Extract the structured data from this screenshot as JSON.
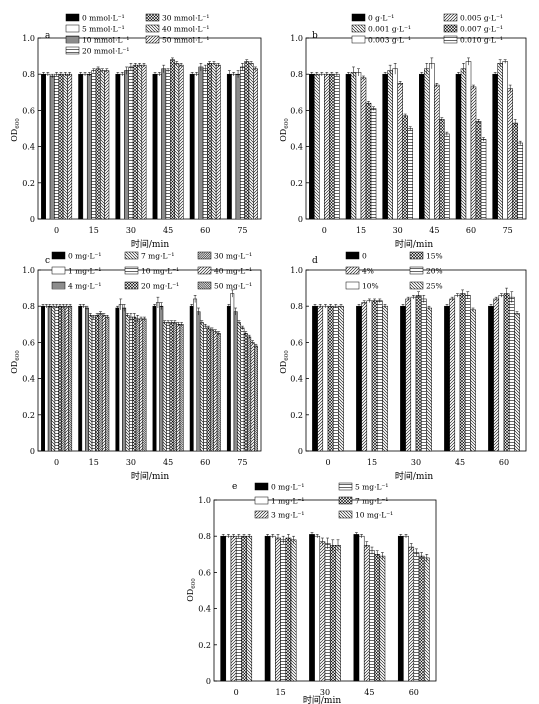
{
  "chart_data": [
    {
      "panel": "a",
      "type": "bar",
      "categories": [
        "0",
        "15",
        "30",
        "45",
        "60",
        "75"
      ],
      "xlabel": "时间/min",
      "ylabel": "OD",
      "ylabel_sub": "600",
      "ylim": [
        0,
        1.0
      ],
      "yticks": [
        "0",
        "0.2",
        "0.4",
        "0.6",
        "0.8",
        "1.0"
      ],
      "legend_position": "top",
      "legend_cols": 2,
      "series": [
        {
          "name": "0 mmol·L⁻¹",
          "pattern": "black",
          "values": [
            0.8,
            0.8,
            0.8,
            0.8,
            0.8,
            0.8
          ],
          "errors": [
            0.01,
            0.01,
            0.01,
            0.01,
            0.01,
            0.02
          ]
        },
        {
          "name": "5 mmol·L⁻¹",
          "pattern": "white",
          "values": [
            0.8,
            0.8,
            0.8,
            0.8,
            0.8,
            0.8
          ],
          "errors": [
            0.01,
            0.01,
            0.01,
            0.01,
            0.01,
            0.01
          ]
        },
        {
          "name": "10 mmol·L⁻¹",
          "pattern": "hhoriz",
          "values": [
            0.79,
            0.8,
            0.82,
            0.83,
            0.84,
            0.8
          ],
          "errors": [
            0.01,
            0.01,
            0.02,
            0.02,
            0.02,
            0.02
          ]
        },
        {
          "name": "20 mmol·L⁻¹",
          "pattern": "horiz",
          "values": [
            0.8,
            0.82,
            0.84,
            0.82,
            0.83,
            0.84
          ],
          "errors": [
            0.01,
            0.01,
            0.02,
            0.01,
            0.02,
            0.02
          ]
        },
        {
          "name": "30 mmol·L⁻¹",
          "pattern": "cross",
          "values": [
            0.8,
            0.83,
            0.85,
            0.88,
            0.86,
            0.87
          ],
          "errors": [
            0.01,
            0.01,
            0.01,
            0.01,
            0.01,
            0.01
          ]
        },
        {
          "name": "40 mmol·L⁻¹",
          "pattern": "back",
          "values": [
            0.8,
            0.82,
            0.85,
            0.86,
            0.86,
            0.86
          ],
          "errors": [
            0.01,
            0.01,
            0.01,
            0.01,
            0.01,
            0.01
          ]
        },
        {
          "name": "50 mmol·L⁻¹",
          "pattern": "fwd",
          "values": [
            0.8,
            0.82,
            0.85,
            0.85,
            0.85,
            0.83
          ],
          "errors": [
            0.01,
            0.01,
            0.01,
            0.01,
            0.01,
            0.01
          ]
        }
      ]
    },
    {
      "panel": "b",
      "type": "bar",
      "categories": [
        "0",
        "15",
        "30",
        "45",
        "60",
        "75"
      ],
      "xlabel": "时间/min",
      "ylabel": "OD",
      "ylabel_sub": "600",
      "ylim": [
        0,
        1.0
      ],
      "yticks": [
        "0",
        "0.2",
        "0.4",
        "0.6",
        "0.8",
        "1.0"
      ],
      "legend_position": "top",
      "legend_cols": 2,
      "series": [
        {
          "name": "0 g·L⁻¹",
          "pattern": "black",
          "values": [
            0.8,
            0.8,
            0.8,
            0.8,
            0.8,
            0.8
          ],
          "errors": [
            0.01,
            0.01,
            0.01,
            0.01,
            0.01,
            0.01
          ]
        },
        {
          "name": "0.001 g·L⁻¹",
          "pattern": "back",
          "values": [
            0.8,
            0.81,
            0.82,
            0.83,
            0.83,
            0.86
          ],
          "errors": [
            0.01,
            0.03,
            0.03,
            0.03,
            0.03,
            0.02
          ]
        },
        {
          "name": "0.003 g·L⁻¹",
          "pattern": "white",
          "values": [
            0.8,
            0.81,
            0.83,
            0.86,
            0.87,
            0.87
          ],
          "errors": [
            0.01,
            0.02,
            0.03,
            0.03,
            0.02,
            0.01
          ]
        },
        {
          "name": "0.005 g·L⁻¹",
          "pattern": "fwd",
          "values": [
            0.8,
            0.78,
            0.75,
            0.74,
            0.73,
            0.72
          ],
          "errors": [
            0.01,
            0.01,
            0.01,
            0.01,
            0.01,
            0.02
          ]
        },
        {
          "name": "0.007 g·L⁻¹",
          "pattern": "cross",
          "values": [
            0.8,
            0.64,
            0.57,
            0.55,
            0.54,
            0.53
          ],
          "errors": [
            0.01,
            0.01,
            0.01,
            0.01,
            0.01,
            0.02
          ]
        },
        {
          "name": "0.010 g·L⁻¹",
          "pattern": "horiz",
          "values": [
            0.8,
            0.61,
            0.5,
            0.47,
            0.44,
            0.42
          ],
          "errors": [
            0.01,
            0.01,
            0.01,
            0.01,
            0.01,
            0.01
          ]
        }
      ]
    },
    {
      "panel": "c",
      "type": "bar",
      "categories": [
        "0",
        "15",
        "30",
        "45",
        "60",
        "75"
      ],
      "xlabel": "时间/min",
      "ylabel": "OD",
      "ylabel_sub": "600",
      "ylim": [
        0,
        1.0
      ],
      "yticks": [
        "0",
        "0.2",
        "0.4",
        "0.6",
        "0.8",
        "1.0"
      ],
      "legend_position": "top",
      "legend_cols": 3,
      "series": [
        {
          "name": "0 mg·L⁻¹",
          "pattern": "black",
          "values": [
            0.8,
            0.8,
            0.79,
            0.8,
            0.8,
            0.8
          ],
          "errors": [
            0.01,
            0.01,
            0.01,
            0.01,
            0.01,
            0.01
          ]
        },
        {
          "name": "1 mg·L⁻¹",
          "pattern": "white",
          "values": [
            0.8,
            0.8,
            0.81,
            0.82,
            0.84,
            0.87
          ],
          "errors": [
            0.01,
            0.01,
            0.03,
            0.03,
            0.02,
            0.02
          ]
        },
        {
          "name": "4 mg·L⁻¹",
          "pattern": "hhoriz",
          "values": [
            0.8,
            0.79,
            0.79,
            0.8,
            0.77,
            0.77
          ],
          "errors": [
            0.01,
            0.01,
            0.02,
            0.02,
            0.02,
            0.02
          ]
        },
        {
          "name": "7 mg·L⁻¹",
          "pattern": "back",
          "values": [
            0.8,
            0.75,
            0.75,
            0.71,
            0.71,
            0.71
          ],
          "errors": [
            0.01,
            0.01,
            0.01,
            0.01,
            0.01,
            0.01
          ]
        },
        {
          "name": "10 mg·L⁻¹",
          "pattern": "horiz",
          "values": [
            0.8,
            0.74,
            0.74,
            0.71,
            0.69,
            0.68
          ],
          "errors": [
            0.01,
            0.01,
            0.02,
            0.01,
            0.01,
            0.01
          ]
        },
        {
          "name": "20 mg·L⁻¹",
          "pattern": "cross",
          "values": [
            0.8,
            0.75,
            0.74,
            0.71,
            0.68,
            0.65
          ],
          "errors": [
            0.01,
            0.01,
            0.02,
            0.01,
            0.01,
            0.01
          ]
        },
        {
          "name": "30 mg·L⁻¹",
          "pattern": "fwdd",
          "values": [
            0.8,
            0.76,
            0.73,
            0.71,
            0.67,
            0.63
          ],
          "errors": [
            0.01,
            0.01,
            0.02,
            0.01,
            0.01,
            0.01
          ]
        },
        {
          "name": "40 mg·L⁻¹",
          "pattern": "fwd",
          "values": [
            0.8,
            0.75,
            0.73,
            0.7,
            0.66,
            0.6
          ],
          "errors": [
            0.01,
            0.01,
            0.01,
            0.01,
            0.01,
            0.01
          ]
        },
        {
          "name": "50 mg·L⁻¹",
          "pattern": "backd",
          "values": [
            0.8,
            0.74,
            0.73,
            0.7,
            0.65,
            0.58
          ],
          "errors": [
            0.01,
            0.01,
            0.01,
            0.01,
            0.01,
            0.01
          ]
        }
      ]
    },
    {
      "panel": "d",
      "type": "bar",
      "categories": [
        "0",
        "15",
        "30",
        "45",
        "60"
      ],
      "xlabel": "时间/min",
      "ylabel": "OD",
      "ylabel_sub": "600",
      "ylim": [
        0,
        1.0
      ],
      "yticks": [
        "0",
        "0.2",
        "0.4",
        "0.6",
        "0.8",
        "1.0"
      ],
      "legend_position": "top",
      "legend_cols": 2,
      "series": [
        {
          "name": "0",
          "pattern": "black",
          "values": [
            0.8,
            0.8,
            0.8,
            0.8,
            0.8
          ],
          "errors": [
            0.01,
            0.01,
            0.01,
            0.01,
            0.01
          ]
        },
        {
          "name": "4%",
          "pattern": "fwd",
          "values": [
            0.8,
            0.82,
            0.84,
            0.84,
            0.84
          ],
          "errors": [
            0.01,
            0.01,
            0.01,
            0.01,
            0.01
          ]
        },
        {
          "name": "10%",
          "pattern": "white",
          "values": [
            0.8,
            0.83,
            0.85,
            0.86,
            0.86
          ],
          "errors": [
            0.01,
            0.01,
            0.01,
            0.01,
            0.01
          ]
        },
        {
          "name": "15%",
          "pattern": "cross",
          "values": [
            0.8,
            0.83,
            0.86,
            0.87,
            0.87
          ],
          "errors": [
            0.01,
            0.01,
            0.02,
            0.02,
            0.03
          ]
        },
        {
          "name": "20%",
          "pattern": "horiz",
          "values": [
            0.8,
            0.83,
            0.84,
            0.86,
            0.85
          ],
          "errors": [
            0.01,
            0.01,
            0.02,
            0.02,
            0.03
          ]
        },
        {
          "name": "25%",
          "pattern": "back",
          "values": [
            0.8,
            0.8,
            0.79,
            0.78,
            0.76
          ],
          "errors": [
            0.01,
            0.01,
            0.01,
            0.01,
            0.01
          ]
        }
      ]
    },
    {
      "panel": "e",
      "type": "bar",
      "categories": [
        "0",
        "15",
        "30",
        "45",
        "60"
      ],
      "xlabel": "时间/min",
      "ylabel": "OD",
      "ylabel_sub": "600",
      "ylim": [
        0,
        1.0
      ],
      "yticks": [
        "0",
        "0.2",
        "0.4",
        "0.6",
        "0.8",
        "1.0"
      ],
      "legend_position": "top",
      "legend_cols": 2,
      "series": [
        {
          "name": "0 mg·L⁻¹",
          "pattern": "black",
          "values": [
            0.8,
            0.8,
            0.81,
            0.81,
            0.8
          ],
          "errors": [
            0.01,
            0.01,
            0.01,
            0.01,
            0.01
          ]
        },
        {
          "name": "1 mg·L⁻¹",
          "pattern": "white",
          "values": [
            0.8,
            0.8,
            0.8,
            0.8,
            0.8
          ],
          "errors": [
            0.01,
            0.01,
            0.01,
            0.01,
            0.01
          ]
        },
        {
          "name": "3 mg·L⁻¹",
          "pattern": "fwd",
          "values": [
            0.8,
            0.79,
            0.77,
            0.75,
            0.74
          ],
          "errors": [
            0.01,
            0.02,
            0.02,
            0.02,
            0.02
          ]
        },
        {
          "name": "5 mg·L⁻¹",
          "pattern": "horiz",
          "values": [
            0.8,
            0.78,
            0.76,
            0.72,
            0.71
          ],
          "errors": [
            0.01,
            0.02,
            0.03,
            0.02,
            0.02
          ]
        },
        {
          "name": "7 mg·L⁻¹",
          "pattern": "cross",
          "values": [
            0.8,
            0.79,
            0.75,
            0.7,
            0.69
          ],
          "errors": [
            0.01,
            0.02,
            0.03,
            0.02,
            0.02
          ]
        },
        {
          "name": "10 mg·L⁻¹",
          "pattern": "back",
          "values": [
            0.8,
            0.78,
            0.75,
            0.69,
            0.68
          ],
          "errors": [
            0.01,
            0.02,
            0.03,
            0.02,
            0.02
          ]
        }
      ]
    }
  ]
}
